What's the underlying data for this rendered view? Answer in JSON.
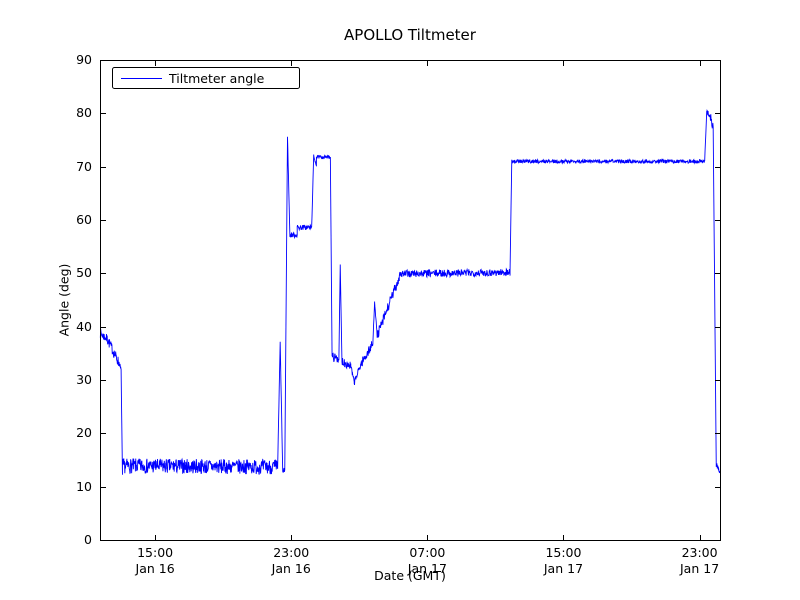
{
  "figure": {
    "background": "#ffffff",
    "frame_color": "#000000"
  },
  "chart_data": {
    "type": "line",
    "title": "APOLLO Tiltmeter",
    "xlabel": "Date (GMT)",
    "ylabel": "Angle (deg)",
    "ylim": [
      0,
      90
    ],
    "yticks": [
      0,
      10,
      20,
      30,
      40,
      50,
      60,
      70,
      80,
      90
    ],
    "xlim_hours": [
      11.76,
      48.2
    ],
    "xticks": [
      {
        "t": 15,
        "time": "15:00",
        "date": "Jan 16"
      },
      {
        "t": 23,
        "time": "23:00",
        "date": "Jan 16"
      },
      {
        "t": 31,
        "time": "07:00",
        "date": "Jan 17"
      },
      {
        "t": 39,
        "time": "15:00",
        "date": "Jan 17"
      },
      {
        "t": 47,
        "time": "23:00",
        "date": "Jan 17"
      }
    ],
    "legend": {
      "label": "Tiltmeter angle",
      "position": "upper left"
    },
    "line_color": "#0000ff",
    "grid": false,
    "sample_minutes": 1.2,
    "noise_seed": 7,
    "series_segments": [
      {
        "t0": 11.76,
        "t1": 12.2,
        "v0": 38.8,
        "v1": 37.6,
        "n": 0.9
      },
      {
        "t0": 12.2,
        "t1": 12.9,
        "v0": 37.6,
        "v1": 33.0,
        "n": 1.0
      },
      {
        "t0": 12.9,
        "t1": 13.0,
        "v0": 33.0,
        "v1": 31.8,
        "n": 0.5
      },
      {
        "t0": 13.0,
        "t1": 13.08,
        "v0": 31.8,
        "v1": 12.0,
        "n": 0.3
      },
      {
        "t0": 13.08,
        "t1": 22.2,
        "v0": 13.9,
        "v1": 13.7,
        "n": 1.4
      },
      {
        "t0": 22.2,
        "t1": 22.35,
        "v0": 13.5,
        "v1": 37.0,
        "n": 0.4
      },
      {
        "t0": 22.35,
        "t1": 22.5,
        "v0": 37.0,
        "v1": 12.6,
        "n": 0.4
      },
      {
        "t0": 22.5,
        "t1": 22.62,
        "v0": 12.6,
        "v1": 13.2,
        "n": 0.5
      },
      {
        "t0": 22.62,
        "t1": 22.78,
        "v0": 13.2,
        "v1": 75.8,
        "n": 0.3
      },
      {
        "t0": 22.78,
        "t1": 22.92,
        "v0": 75.8,
        "v1": 57.0,
        "n": 0.3
      },
      {
        "t0": 22.92,
        "t1": 23.35,
        "v0": 57.2,
        "v1": 57.2,
        "n": 0.5
      },
      {
        "t0": 23.35,
        "t1": 24.2,
        "v0": 58.6,
        "v1": 58.6,
        "n": 0.5
      },
      {
        "t0": 24.2,
        "t1": 24.32,
        "v0": 58.6,
        "v1": 72.0,
        "n": 0.3
      },
      {
        "t0": 24.32,
        "t1": 24.48,
        "v0": 72.0,
        "v1": 70.3,
        "n": 0.3
      },
      {
        "t0": 24.48,
        "t1": 25.3,
        "v0": 71.8,
        "v1": 71.8,
        "n": 0.3
      },
      {
        "t0": 25.3,
        "t1": 25.4,
        "v0": 71.8,
        "v1": 34.5,
        "n": 0.2
      },
      {
        "t0": 25.4,
        "t1": 25.8,
        "v0": 34.4,
        "v1": 33.9,
        "n": 0.8
      },
      {
        "t0": 25.8,
        "t1": 25.88,
        "v0": 33.9,
        "v1": 51.5,
        "n": 0.2
      },
      {
        "t0": 25.88,
        "t1": 25.98,
        "v0": 51.5,
        "v1": 33.6,
        "n": 0.2
      },
      {
        "t0": 25.98,
        "t1": 26.5,
        "v0": 33.6,
        "v1": 32.6,
        "n": 0.9
      },
      {
        "t0": 26.5,
        "t1": 26.7,
        "v0": 32.6,
        "v1": 29.5,
        "n": 0.5
      },
      {
        "t0": 26.7,
        "t1": 27.1,
        "v0": 29.5,
        "v1": 33.0,
        "n": 0.6
      },
      {
        "t0": 27.1,
        "t1": 27.8,
        "v0": 33.0,
        "v1": 36.8,
        "n": 0.9
      },
      {
        "t0": 27.8,
        "t1": 27.9,
        "v0": 37.0,
        "v1": 44.8,
        "n": 0.3
      },
      {
        "t0": 27.9,
        "t1": 28.05,
        "v0": 44.8,
        "v1": 38.2,
        "n": 0.3
      },
      {
        "t0": 28.05,
        "t1": 29.35,
        "v0": 38.2,
        "v1": 49.3,
        "n": 1.0
      },
      {
        "t0": 29.35,
        "t1": 35.86,
        "v0": 49.9,
        "v1": 50.2,
        "n": 0.7
      },
      {
        "t0": 35.86,
        "t1": 35.96,
        "v0": 50.3,
        "v1": 71.0,
        "n": 0.1
      },
      {
        "t0": 35.96,
        "t1": 47.3,
        "v0": 71.0,
        "v1": 71.0,
        "n": 0.35
      },
      {
        "t0": 47.3,
        "t1": 47.42,
        "v0": 71.2,
        "v1": 80.3,
        "n": 0.2
      },
      {
        "t0": 47.42,
        "t1": 47.62,
        "v0": 80.2,
        "v1": 79.6,
        "n": 0.5
      },
      {
        "t0": 47.62,
        "t1": 47.8,
        "v0": 79.6,
        "v1": 77.2,
        "n": 0.8
      },
      {
        "t0": 47.8,
        "t1": 47.98,
        "v0": 77.2,
        "v1": 13.6,
        "n": 0.3
      },
      {
        "t0": 47.98,
        "t1": 48.2,
        "v0": 13.9,
        "v1": 13.2,
        "n": 0.7
      }
    ]
  }
}
